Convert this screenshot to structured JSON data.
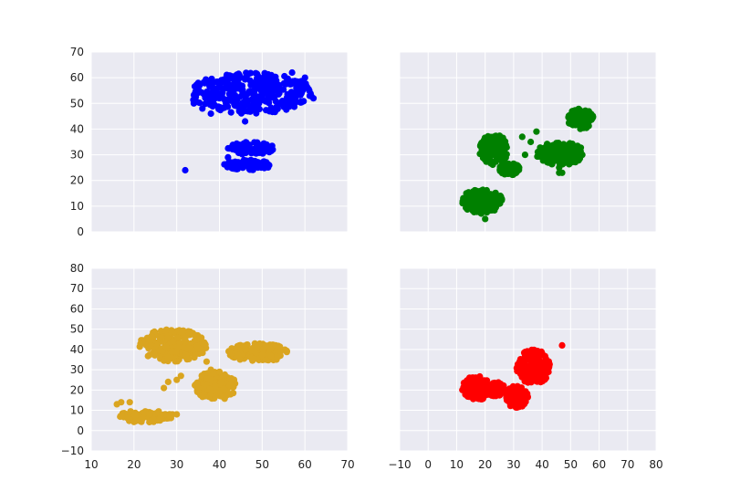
{
  "figure": {
    "background": "#ffffff",
    "axes_background": "#eaeaf2",
    "grid_color": "#ffffff"
  },
  "chart_data": [
    {
      "type": "scatter",
      "position": "top-left",
      "color": "#0000ff",
      "xlim": [
        10,
        70
      ],
      "ylim": [
        0,
        70
      ],
      "x_ticks": [],
      "y_ticks": [
        0,
        10,
        20,
        30,
        40,
        50,
        60,
        70
      ],
      "grid": true,
      "clusters": [
        {
          "x": [
            33,
            62
          ],
          "y": [
            46,
            62
          ],
          "desc": "main elongated cloud"
        },
        {
          "x": [
            42,
            53
          ],
          "y": [
            30,
            35
          ],
          "desc": "upper band"
        },
        {
          "x": [
            41,
            52
          ],
          "y": [
            24,
            28
          ],
          "desc": "lower band"
        }
      ],
      "points": [
        [
          32,
          24
        ],
        [
          46,
          43
        ],
        [
          60,
          60
        ],
        [
          57,
          62
        ],
        [
          42,
          29
        ],
        [
          34,
          50
        ],
        [
          36,
          48
        ],
        [
          38,
          46
        ],
        [
          40,
          52
        ],
        [
          44,
          49
        ],
        [
          46,
          47
        ],
        [
          50,
          55
        ],
        [
          54,
          54
        ],
        [
          58,
          56
        ],
        [
          61,
          55
        ],
        [
          48,
          58
        ],
        [
          52,
          60
        ],
        [
          56,
          58
        ],
        [
          62,
          52
        ],
        [
          44,
          33
        ],
        [
          48,
          31
        ],
        [
          52,
          32
        ],
        [
          45,
          26
        ],
        [
          49,
          25
        ],
        [
          51,
          27
        ]
      ]
    },
    {
      "type": "scatter",
      "position": "top-right",
      "color": "#008000",
      "xlim": [
        -10,
        80
      ],
      "ylim": [
        0,
        70
      ],
      "x_ticks": [],
      "y_ticks": [],
      "grid": true,
      "clusters": [
        {
          "x": [
            18,
            28
          ],
          "y": [
            26,
            38
          ],
          "desc": "left upper cluster"
        },
        {
          "x": [
            25,
            32
          ],
          "y": [
            22,
            27
          ],
          "desc": "left tail"
        },
        {
          "x": [
            12,
            26
          ],
          "y": [
            7,
            17
          ],
          "desc": "bottom cluster"
        },
        {
          "x": [
            38,
            55
          ],
          "y": [
            26,
            35
          ],
          "desc": "middle bands"
        },
        {
          "x": [
            49,
            58
          ],
          "y": [
            40,
            48
          ],
          "desc": "top right cluster"
        }
      ],
      "points": [
        [
          20,
          5
        ],
        [
          34,
          30
        ],
        [
          36,
          35
        ],
        [
          38,
          39
        ],
        [
          33,
          37
        ],
        [
          46,
          23
        ],
        [
          46,
          25
        ],
        [
          47,
          23
        ],
        [
          21,
          36
        ],
        [
          24,
          30
        ],
        [
          27,
          24
        ],
        [
          15,
          12
        ],
        [
          22,
          14
        ],
        [
          42,
          30
        ],
        [
          50,
          31
        ],
        [
          53,
          44
        ],
        [
          56,
          42
        ]
      ]
    },
    {
      "type": "scatter",
      "position": "bottom-left",
      "color": "#daa520",
      "xlim": [
        10,
        70
      ],
      "ylim": [
        -10,
        80
      ],
      "x_ticks": [
        10,
        20,
        30,
        40,
        50,
        60,
        70
      ],
      "y_ticks": [
        -10,
        0,
        10,
        20,
        30,
        40,
        50,
        60,
        70,
        80
      ],
      "grid": true,
      "clusters": [
        {
          "x": [
            21,
            37
          ],
          "y": [
            34,
            50
          ],
          "desc": "upper-left cloud"
        },
        {
          "x": [
            42,
            56
          ],
          "y": [
            34,
            43
          ],
          "desc": "right cloud"
        },
        {
          "x": [
            34,
            44
          ],
          "y": [
            15,
            29
          ],
          "desc": "middle cloud"
        },
        {
          "x": [
            16,
            29
          ],
          "y": [
            4,
            10
          ],
          "desc": "bottom band"
        }
      ],
      "points": [
        [
          16,
          13
        ],
        [
          17,
          14
        ],
        [
          19,
          14
        ],
        [
          27,
          21
        ],
        [
          28,
          24
        ],
        [
          30,
          25
        ],
        [
          31,
          27
        ],
        [
          38,
          30
        ],
        [
          40,
          29
        ],
        [
          37,
          34
        ],
        [
          29,
          8
        ],
        [
          30,
          8
        ],
        [
          24,
          42
        ],
        [
          32,
          46
        ],
        [
          46,
          40
        ],
        [
          52,
          37
        ],
        [
          39,
          22
        ],
        [
          42,
          18
        ],
        [
          22,
          6
        ]
      ]
    },
    {
      "type": "scatter",
      "position": "bottom-right",
      "color": "#ff0000",
      "xlim": [
        -10,
        80
      ],
      "ylim": [
        -10,
        80
      ],
      "x_ticks": [
        -10,
        0,
        10,
        20,
        30,
        40,
        50,
        60,
        70,
        80
      ],
      "y_ticks": [],
      "grid": true,
      "clusters": [
        {
          "x": [
            12,
            22
          ],
          "y": [
            15,
            27
          ],
          "desc": "left blob"
        },
        {
          "x": [
            20,
            27
          ],
          "y": [
            17,
            24
          ],
          "desc": "bridge"
        },
        {
          "x": [
            27,
            35
          ],
          "y": [
            11,
            22
          ],
          "desc": "lower middle blob"
        },
        {
          "x": [
            31,
            43
          ],
          "y": [
            23,
            40
          ],
          "desc": "upper right blob"
        }
      ],
      "points": [
        [
          47,
          42
        ],
        [
          12,
          20
        ],
        [
          14,
          25
        ],
        [
          18,
          18
        ],
        [
          24,
          20
        ],
        [
          29,
          15
        ],
        [
          33,
          12
        ],
        [
          36,
          30
        ],
        [
          40,
          38
        ],
        [
          42,
          33
        ]
      ]
    }
  ]
}
